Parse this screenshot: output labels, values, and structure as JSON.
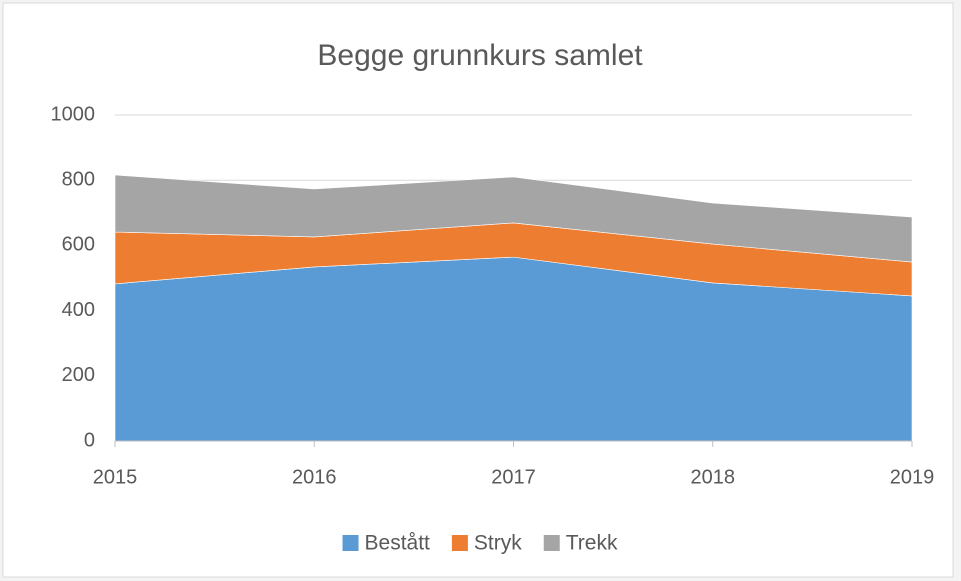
{
  "chart_data": {
    "type": "area",
    "stacked": true,
    "title": "Begge grunnkurs samlet",
    "x": [
      2015,
      2016,
      2017,
      2018,
      2019
    ],
    "xlim": [
      2015,
      2019
    ],
    "xticks": [
      2015,
      2016,
      2017,
      2018,
      2019
    ],
    "ylim": [
      0,
      1000
    ],
    "yticks": [
      0,
      200,
      400,
      600,
      800,
      1000
    ],
    "grid": true,
    "legend": "bottom",
    "series": [
      {
        "name": "Bestått",
        "color": "#5b9bd5",
        "values": [
          482,
          534,
          564,
          485,
          445
        ]
      },
      {
        "name": "Stryk",
        "color": "#ed7d31",
        "values": [
          159,
          92,
          105,
          119,
          104
        ]
      },
      {
        "name": "Trekk",
        "color": "#a5a5a5",
        "values": [
          175,
          147,
          141,
          126,
          138
        ]
      }
    ]
  }
}
